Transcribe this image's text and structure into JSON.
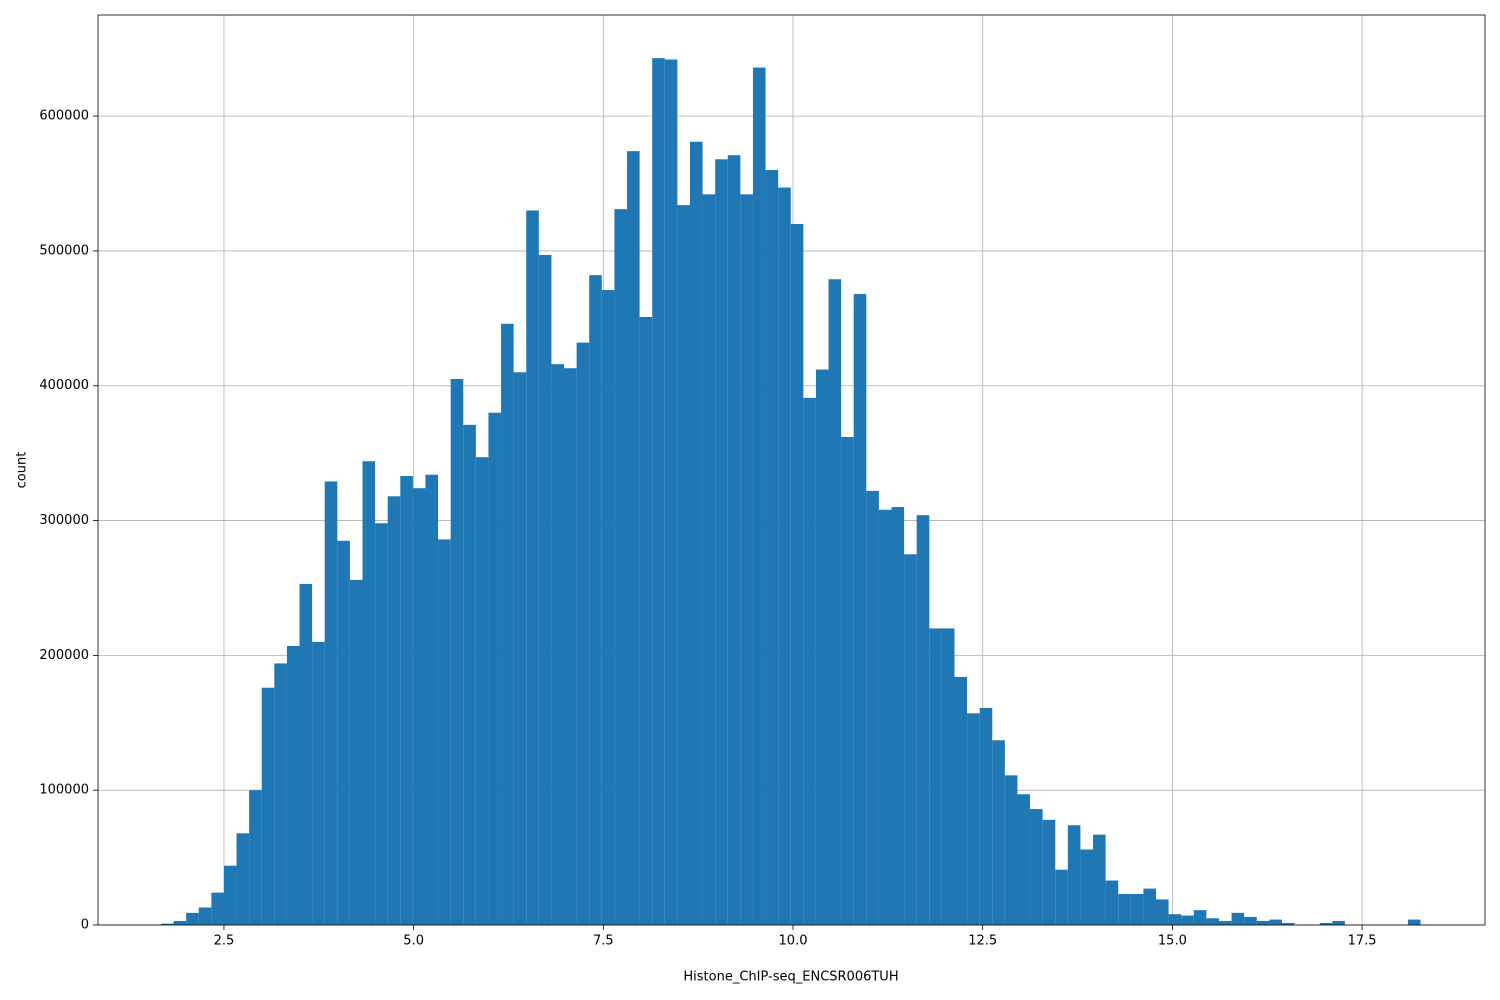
{
  "chart_data": {
    "type": "histogram",
    "xlabel": "Histone_ChIP-seq_ENCSR006TUH",
    "ylabel": "count",
    "color": "#1f77b4",
    "grid": true,
    "bins": [
      1.67,
      1.836,
      2.002,
      2.168,
      2.334,
      2.5,
      2.666,
      2.832,
      2.998,
      3.164,
      3.33,
      3.496,
      3.662,
      3.828,
      3.994,
      4.16,
      4.326,
      4.492,
      4.658,
      4.824,
      4.99,
      5.156,
      5.322,
      5.488,
      5.654,
      5.82,
      5.986,
      6.152,
      6.318,
      6.484,
      6.65,
      6.816,
      6.982,
      7.148,
      7.314,
      7.48,
      7.646,
      7.812,
      7.978,
      8.144,
      8.31,
      8.476,
      8.642,
      8.808,
      8.974,
      9.14,
      9.306,
      9.472,
      9.638,
      9.804,
      9.97,
      10.136,
      10.302,
      10.468,
      10.634,
      10.8,
      10.966,
      11.132,
      11.298,
      11.464,
      11.63,
      11.796,
      11.962,
      12.128,
      12.294,
      12.46,
      12.626,
      12.792,
      12.958,
      13.124,
      13.29,
      13.456,
      13.622,
      13.788,
      13.954,
      14.12,
      14.286,
      14.452,
      14.618,
      14.784,
      14.95,
      15.116,
      15.282,
      15.448,
      15.614,
      15.78,
      15.946,
      16.112,
      16.278,
      16.444,
      16.61,
      16.776,
      16.942,
      17.108,
      17.274,
      17.44,
      17.606,
      17.772,
      17.938,
      18.104,
      18.27
    ],
    "values": [
      1000,
      3000,
      9000,
      13000,
      24000,
      44000,
      68000,
      100000,
      176000,
      194000,
      207000,
      253000,
      210000,
      329000,
      285000,
      256000,
      344000,
      298000,
      318000,
      333000,
      324000,
      334000,
      286000,
      405000,
      371000,
      347000,
      380000,
      446000,
      410000,
      530000,
      497000,
      416000,
      413000,
      432000,
      482000,
      471000,
      531000,
      574000,
      451000,
      643000,
      642000,
      534000,
      581000,
      542000,
      568000,
      571000,
      542000,
      636000,
      560000,
      547000,
      520000,
      391000,
      412000,
      479000,
      362000,
      468000,
      322000,
      308000,
      310000,
      275000,
      304000,
      220000,
      220000,
      184000,
      157000,
      161000,
      137000,
      111000,
      97000,
      86000,
      78000,
      41000,
      74000,
      56000,
      67000,
      33000,
      23000,
      23000,
      27000,
      19000,
      8000,
      7000,
      11000,
      5000,
      3000,
      9000,
      6000,
      3000,
      4000,
      1500,
      0,
      0,
      1500,
      3000,
      0,
      0,
      0,
      0,
      0,
      4000
    ],
    "xlim": [
      0.84,
      19.12
    ],
    "ylim": [
      0,
      675000
    ],
    "xticks": [
      2.5,
      {
        "value": 5,
        "label": "5.0"
      },
      7.5,
      {
        "value": 10,
        "label": "10.0"
      },
      12.5,
      {
        "value": 15,
        "label": "15.0"
      },
      17.5
    ],
    "yticks": [
      0,
      100000,
      200000,
      300000,
      400000,
      500000,
      600000
    ]
  }
}
